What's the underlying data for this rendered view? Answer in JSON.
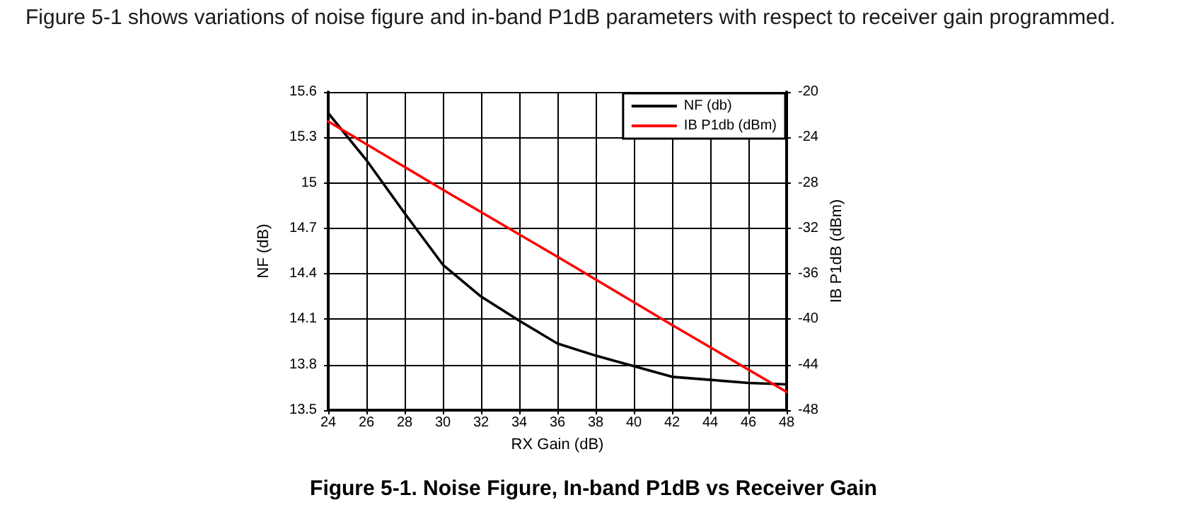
{
  "chart_data": {
    "type": "line",
    "title": "Figure 5-1. Noise Figure, In-band P1dB vs Receiver Gain",
    "annotations": [
      "Figure 5-1 shows variations of noise figure and in-band P1dB parameters with respect to receiver gain programmed."
    ],
    "xlabel": "RX Gain (dB)",
    "ylabel": "NF (dB)",
    "y2label": "IB P1dB (dBm)",
    "x": [
      24,
      26,
      28,
      30,
      32,
      34,
      36,
      38,
      40,
      42,
      44,
      46,
      48
    ],
    "series": [
      {
        "name": "NF (db)",
        "color": "#000000",
        "values": [
          15.46,
          15.15,
          14.8,
          14.46,
          14.25,
          14.09,
          13.94,
          13.86,
          13.79,
          13.72,
          13.7,
          13.68,
          13.67
        ]
      },
      {
        "name": "IB P1db (dBm)",
        "color": "#ff0000",
        "axis": "y2",
        "x": [
          24,
          30,
          36,
          42,
          48
        ],
        "values": [
          -22.6,
          -28.6,
          -34.5,
          -40.5,
          -46.4
        ]
      }
    ],
    "xlim": [
      24,
      48
    ],
    "xticks": [
      24,
      26,
      28,
      30,
      32,
      34,
      36,
      38,
      40,
      42,
      44,
      46,
      48
    ],
    "ylim": [
      13.5,
      15.6
    ],
    "yticks": [
      13.5,
      13.8,
      14.1,
      14.4,
      14.7,
      15,
      15.3,
      15.6
    ],
    "y2lim": [
      -48,
      -20
    ],
    "y2ticks": [
      -48,
      -44,
      -40,
      -36,
      -32,
      -28,
      -24,
      -20
    ],
    "grid": true,
    "legend": "top right",
    "marker": "none",
    "line_style": "solid"
  }
}
